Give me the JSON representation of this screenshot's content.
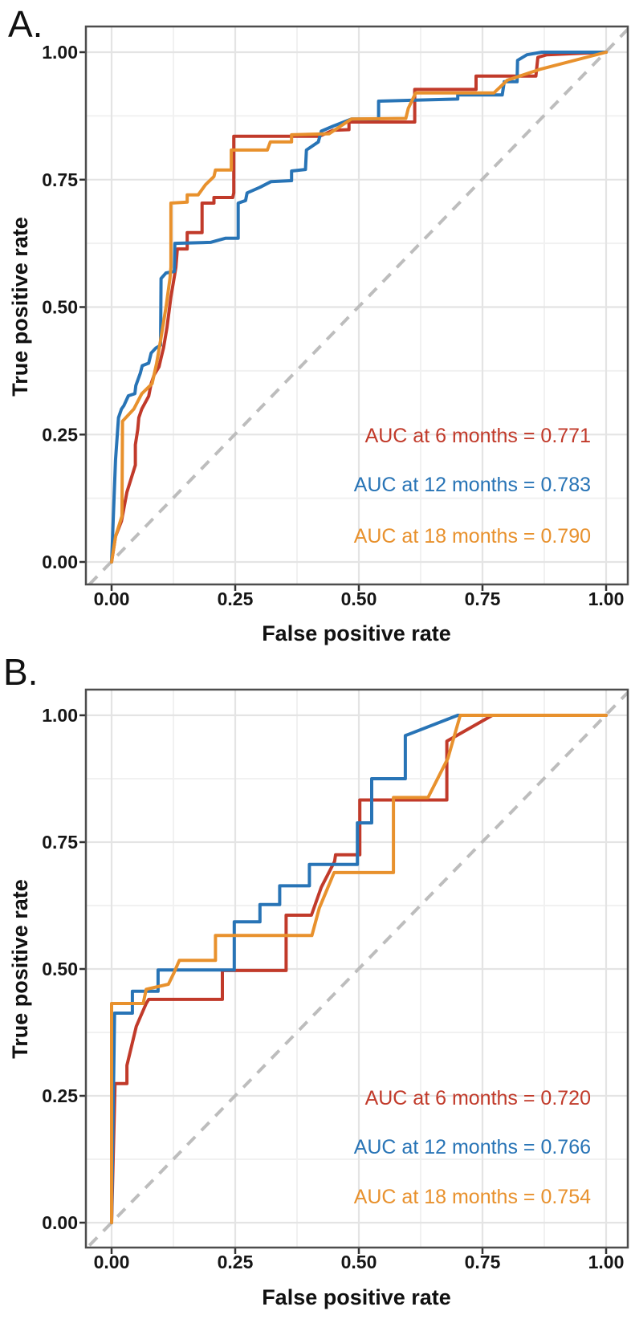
{
  "figure": {
    "background": "#ffffff",
    "colors": {
      "red": "#c13a2a",
      "blue": "#2874b6",
      "orange": "#e8912d",
      "diagonal": "#bdbdbd",
      "grid_major": "#e4e4e4",
      "grid_minor": "#f1f1f1",
      "border": "#4d4d4d",
      "tick": "#333333"
    },
    "panels": [
      {
        "label": "A.",
        "x_axis": {
          "title": "False positive rate",
          "ticks": [
            "0.00",
            "0.25",
            "0.50",
            "0.75",
            "1.00"
          ]
        },
        "y_axis": {
          "title": "True positive rate",
          "ticks": [
            "0.00",
            "0.25",
            "0.50",
            "0.75",
            "1.00"
          ]
        },
        "annotations": [
          {
            "text": "AUC at 6 months = 0.771",
            "color": "#c13a2a"
          },
          {
            "text": "AUC at 12 months = 0.783",
            "color": "#2874b6"
          },
          {
            "text": "AUC at 18 months = 0.790",
            "color": "#e8912d"
          }
        ]
      },
      {
        "label": "B.",
        "x_axis": {
          "title": "False positive rate",
          "ticks": [
            "0.00",
            "0.25",
            "0.50",
            "0.75",
            "1.00"
          ]
        },
        "y_axis": {
          "title": "True positive rate",
          "ticks": [
            "0.00",
            "0.25",
            "0.50",
            "0.75",
            "1.00"
          ]
        },
        "annotations": [
          {
            "text": "AUC at 6 months = 0.720",
            "color": "#c13a2a"
          },
          {
            "text": "AUC at 12 months = 0.766",
            "color": "#2874b6"
          },
          {
            "text": "AUC at 18 months = 0.754",
            "color": "#e8912d"
          }
        ]
      }
    ]
  },
  "chart_data": [
    {
      "type": "line",
      "panel": "a",
      "subtype": "roc-step-curves",
      "xlabel": "False positive rate",
      "ylabel": "True positive rate",
      "xlim": [
        0,
        1
      ],
      "ylim": [
        0,
        1
      ],
      "grid": true,
      "minor_gridlines": true,
      "diagonal_reference": true,
      "legend_position": "annotations lower right inside panel",
      "tick_values": [
        0,
        0.25,
        0.5,
        0.75,
        1
      ],
      "minor_tick_values": [
        0.125,
        0.375,
        0.625,
        0.875
      ],
      "series": [
        {
          "name": "6 months",
          "auc": 0.771,
          "color": "#c13a2a",
          "points": [
            [
              0,
              0
            ],
            [
              0.008,
              0.05
            ],
            [
              0.02,
              0.08
            ],
            [
              0.031,
              0.137
            ],
            [
              0.048,
              0.19
            ],
            [
              0.048,
              0.23
            ],
            [
              0.053,
              0.26
            ],
            [
              0.055,
              0.283
            ],
            [
              0.061,
              0.3
            ],
            [
              0.075,
              0.325
            ],
            [
              0.08,
              0.35
            ],
            [
              0.086,
              0.367
            ],
            [
              0.096,
              0.383
            ],
            [
              0.1,
              0.4
            ],
            [
              0.105,
              0.42
            ],
            [
              0.112,
              0.46
            ],
            [
              0.12,
              0.52
            ],
            [
              0.13,
              0.578
            ],
            [
              0.133,
              0.614
            ],
            [
              0.153,
              0.614
            ],
            [
              0.153,
              0.646
            ],
            [
              0.183,
              0.646
            ],
            [
              0.183,
              0.704
            ],
            [
              0.207,
              0.704
            ],
            [
              0.207,
              0.715
            ],
            [
              0.245,
              0.715
            ],
            [
              0.247,
              0.724
            ],
            [
              0.247,
              0.835
            ],
            [
              0.42,
              0.835
            ],
            [
              0.448,
              0.847
            ],
            [
              0.48,
              0.848
            ],
            [
              0.48,
              0.863
            ],
            [
              0.613,
              0.863
            ],
            [
              0.613,
              0.927
            ],
            [
              0.737,
              0.927
            ],
            [
              0.737,
              0.953
            ],
            [
              0.858,
              0.953
            ],
            [
              0.862,
              0.99
            ],
            [
              0.88,
              0.995
            ],
            [
              1,
              1
            ]
          ]
        },
        {
          "name": "12 months",
          "auc": 0.783,
          "color": "#2874b6",
          "points": [
            [
              0,
              0
            ],
            [
              0.008,
              0.2
            ],
            [
              0.014,
              0.283
            ],
            [
              0.02,
              0.3
            ],
            [
              0.025,
              0.307
            ],
            [
              0.034,
              0.326
            ],
            [
              0.047,
              0.33
            ],
            [
              0.049,
              0.346
            ],
            [
              0.058,
              0.37
            ],
            [
              0.062,
              0.385
            ],
            [
              0.075,
              0.39
            ],
            [
              0.08,
              0.41
            ],
            [
              0.09,
              0.42
            ],
            [
              0.099,
              0.425
            ],
            [
              0.1,
              0.556
            ],
            [
              0.11,
              0.567
            ],
            [
              0.127,
              0.57
            ],
            [
              0.128,
              0.625
            ],
            [
              0.2,
              0.627
            ],
            [
              0.23,
              0.635
            ],
            [
              0.256,
              0.635
            ],
            [
              0.256,
              0.704
            ],
            [
              0.271,
              0.709
            ],
            [
              0.274,
              0.724
            ],
            [
              0.3,
              0.735
            ],
            [
              0.322,
              0.746
            ],
            [
              0.364,
              0.748
            ],
            [
              0.364,
              0.767
            ],
            [
              0.392,
              0.77
            ],
            [
              0.394,
              0.808
            ],
            [
              0.418,
              0.824
            ],
            [
              0.424,
              0.845
            ],
            [
              0.448,
              0.855
            ],
            [
              0.485,
              0.869
            ],
            [
              0.54,
              0.869
            ],
            [
              0.54,
              0.904
            ],
            [
              0.7,
              0.908
            ],
            [
              0.7,
              0.916
            ],
            [
              0.79,
              0.916
            ],
            [
              0.794,
              0.942
            ],
            [
              0.82,
              0.942
            ],
            [
              0.821,
              0.984
            ],
            [
              0.84,
              0.995
            ],
            [
              0.87,
              1
            ],
            [
              1,
              1
            ]
          ]
        },
        {
          "name": "18 months",
          "auc": 0.79,
          "color": "#e8912d",
          "points": [
            [
              0,
              0
            ],
            [
              0.008,
              0.05
            ],
            [
              0.021,
              0.09
            ],
            [
              0.022,
              0.276
            ],
            [
              0.045,
              0.3
            ],
            [
              0.061,
              0.33
            ],
            [
              0.082,
              0.35
            ],
            [
              0.091,
              0.39
            ],
            [
              0.1,
              0.44
            ],
            [
              0.11,
              0.5
            ],
            [
              0.118,
              0.556
            ],
            [
              0.12,
              0.578
            ],
            [
              0.12,
              0.704
            ],
            [
              0.153,
              0.706
            ],
            [
              0.153,
              0.72
            ],
            [
              0.175,
              0.72
            ],
            [
              0.19,
              0.74
            ],
            [
              0.207,
              0.756
            ],
            [
              0.21,
              0.769
            ],
            [
              0.242,
              0.769
            ],
            [
              0.242,
              0.808
            ],
            [
              0.315,
              0.808
            ],
            [
              0.321,
              0.824
            ],
            [
              0.364,
              0.824
            ],
            [
              0.364,
              0.838
            ],
            [
              0.44,
              0.84
            ],
            [
              0.485,
              0.869
            ],
            [
              0.595,
              0.87
            ],
            [
              0.6,
              0.89
            ],
            [
              0.615,
              0.92
            ],
            [
              0.773,
              0.92
            ],
            [
              0.8,
              0.945
            ],
            [
              0.865,
              0.966
            ],
            [
              1,
              1
            ]
          ]
        }
      ]
    },
    {
      "type": "line",
      "panel": "b",
      "subtype": "roc-step-curves",
      "xlabel": "False positive rate",
      "ylabel": "True positive rate",
      "xlim": [
        0,
        1
      ],
      "ylim": [
        0,
        1
      ],
      "grid": true,
      "minor_gridlines": true,
      "diagonal_reference": true,
      "legend_position": "annotations lower right inside panel",
      "tick_values": [
        0,
        0.25,
        0.5,
        0.75,
        1
      ],
      "minor_tick_values": [
        0.125,
        0.375,
        0.625,
        0.875
      ],
      "series": [
        {
          "name": "6 months",
          "auc": 0.72,
          "color": "#c13a2a",
          "points": [
            [
              0,
              0
            ],
            [
              0.007,
              0.274
            ],
            [
              0.031,
              0.274
            ],
            [
              0.031,
              0.31
            ],
            [
              0.05,
              0.387
            ],
            [
              0.07,
              0.432
            ],
            [
              0.075,
              0.44
            ],
            [
              0.224,
              0.44
            ],
            [
              0.224,
              0.497
            ],
            [
              0.353,
              0.497
            ],
            [
              0.353,
              0.606
            ],
            [
              0.404,
              0.606
            ],
            [
              0.424,
              0.661
            ],
            [
              0.451,
              0.712
            ],
            [
              0.453,
              0.725
            ],
            [
              0.502,
              0.725
            ],
            [
              0.502,
              0.833
            ],
            [
              0.678,
              0.833
            ],
            [
              0.678,
              0.949
            ],
            [
              0.77,
              1
            ],
            [
              1,
              1
            ]
          ]
        },
        {
          "name": "12 months",
          "auc": 0.766,
          "color": "#2874b6",
          "points": [
            [
              0,
              0
            ],
            [
              0.006,
              0.413
            ],
            [
              0.042,
              0.413
            ],
            [
              0.042,
              0.456
            ],
            [
              0.094,
              0.456
            ],
            [
              0.094,
              0.498
            ],
            [
              0.248,
              0.498
            ],
            [
              0.248,
              0.593
            ],
            [
              0.3,
              0.593
            ],
            [
              0.3,
              0.627
            ],
            [
              0.34,
              0.627
            ],
            [
              0.34,
              0.664
            ],
            [
              0.4,
              0.664
            ],
            [
              0.4,
              0.706
            ],
            [
              0.497,
              0.706
            ],
            [
              0.497,
              0.788
            ],
            [
              0.526,
              0.788
            ],
            [
              0.526,
              0.875
            ],
            [
              0.594,
              0.875
            ],
            [
              0.594,
              0.96
            ],
            [
              0.7,
              1
            ],
            [
              1,
              1
            ]
          ]
        },
        {
          "name": "18 months",
          "auc": 0.754,
          "color": "#e8912d",
          "points": [
            [
              0,
              0
            ],
            [
              0,
              0.432
            ],
            [
              0.064,
              0.432
            ],
            [
              0.07,
              0.46
            ],
            [
              0.115,
              0.47
            ],
            [
              0.125,
              0.49
            ],
            [
              0.137,
              0.517
            ],
            [
              0.21,
              0.517
            ],
            [
              0.21,
              0.566
            ],
            [
              0.405,
              0.566
            ],
            [
              0.42,
              0.62
            ],
            [
              0.45,
              0.69
            ],
            [
              0.57,
              0.69
            ],
            [
              0.57,
              0.838
            ],
            [
              0.64,
              0.838
            ],
            [
              0.68,
              0.915
            ],
            [
              0.705,
              1
            ],
            [
              1,
              1
            ]
          ]
        }
      ]
    }
  ]
}
